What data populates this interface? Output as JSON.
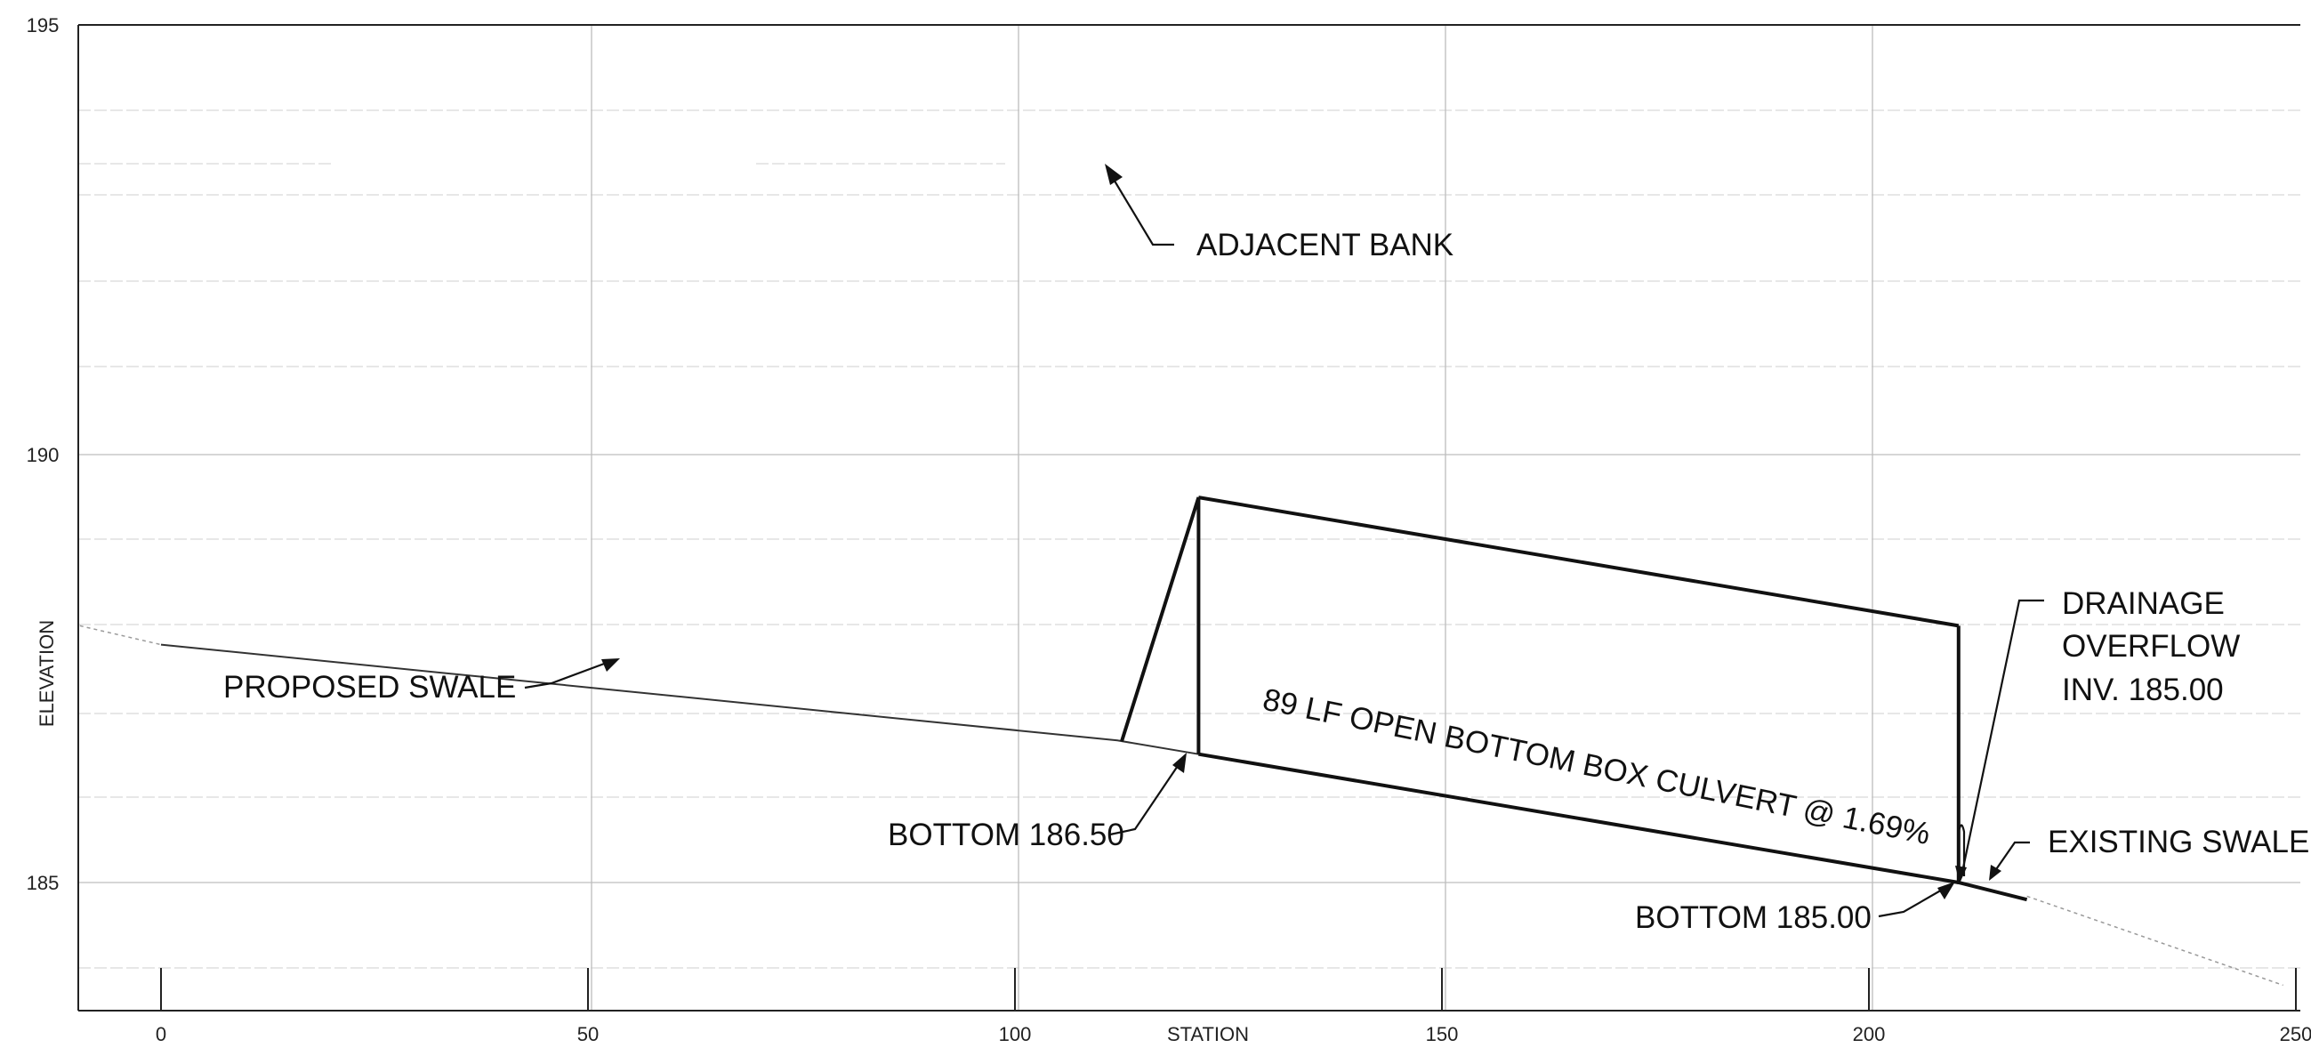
{
  "chart_data": {
    "type": "line",
    "title": "",
    "xlabel": "STATION",
    "ylabel": "ELEVATION",
    "xlim": [
      -10,
      250
    ],
    "ylim": [
      183,
      195
    ],
    "x_ticks": [
      "0",
      "50",
      "100",
      "150",
      "200",
      "250"
    ],
    "y_ticks": [
      "185",
      "190",
      "195"
    ],
    "grid": true,
    "series": [
      {
        "id": "proposed-swale",
        "x": [
          -9.5,
          0,
          112,
          121.5
        ],
        "y": [
          188.0,
          187.78,
          186.66,
          186.5
        ]
      },
      {
        "id": "existing-swale",
        "x": [
          210.5,
          218.5,
          248.5
        ],
        "y": [
          185.0,
          184.84,
          183.8
        ]
      },
      {
        "id": "culvert-bottom",
        "x": [
          121.5,
          210.5
        ],
        "y": [
          186.5,
          185.0
        ]
      },
      {
        "id": "culvert-top",
        "x": [
          121.5,
          210.5
        ],
        "y": [
          189.5,
          188.0
        ]
      },
      {
        "id": "upstream-headwall",
        "x": [
          112.5,
          121.5,
          121.5
        ],
        "y": [
          186.65,
          189.5,
          186.5
        ]
      },
      {
        "id": "downstream-headwall",
        "x": [
          210.5,
          210.5,
          218.5
        ],
        "y": [
          188.0,
          185.0,
          184.8
        ]
      }
    ],
    "annotations": [
      {
        "id": "adjacent-bank",
        "text": "ADJACENT BANK"
      },
      {
        "id": "proposed-swale",
        "text": "PROPOSED SWALE"
      },
      {
        "id": "culvert",
        "text": "89 LF OPEN BOTTOM BOX CULVERT @ 1.69%"
      },
      {
        "id": "bottom-upstream",
        "text": "BOTTOM 186.50"
      },
      {
        "id": "bottom-downstream",
        "text": "BOTTOM 185.00"
      },
      {
        "id": "drainage-overflow-1",
        "text": "DRAINAGE"
      },
      {
        "id": "drainage-overflow-2",
        "text": "OVERFLOW"
      },
      {
        "id": "drainage-overflow-3",
        "text": "INV. 185.00"
      },
      {
        "id": "existing-swale",
        "text": "EXISTING SWALE"
      }
    ]
  }
}
